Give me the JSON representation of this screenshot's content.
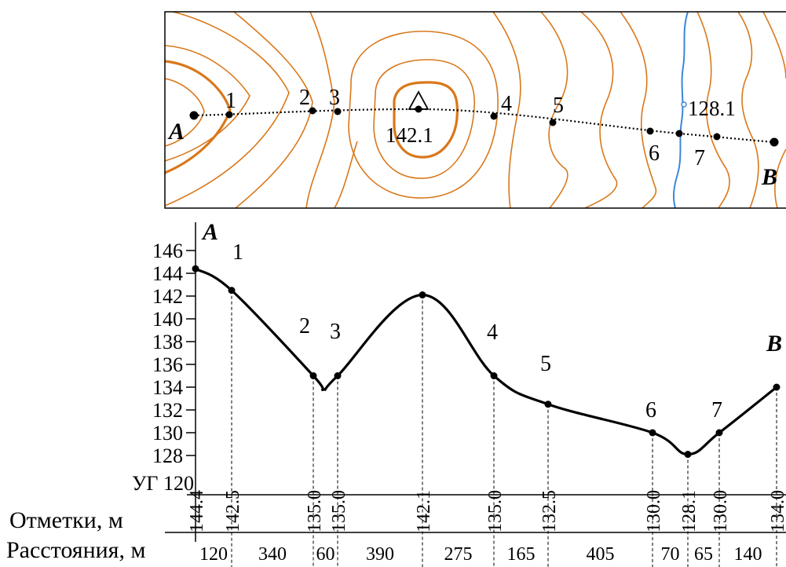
{
  "map": {
    "start_label": "A",
    "end_label": "B",
    "summit_label": "142.1",
    "river_label": "128.1",
    "point_labels": [
      "1",
      "2",
      "3",
      "4",
      "5",
      "6",
      "7"
    ],
    "contour_color": "#d9781a",
    "river_color": "#3b86d8"
  },
  "profile": {
    "baseline_label": "УГ 120",
    "row_labels": {
      "elevations": "Отметки, м",
      "distances": "Расстояния, м"
    },
    "y_ticks": [
      "146",
      "144",
      "142",
      "140",
      "138",
      "136",
      "134",
      "132",
      "130",
      "128"
    ],
    "points": [
      {
        "label": "A",
        "elevation": 144.4,
        "elevation_text": "144.4"
      },
      {
        "label": "1",
        "elevation": 142.5,
        "elevation_text": "142.5"
      },
      {
        "label": "2",
        "elevation": 135.0,
        "elevation_text": "135.0"
      },
      {
        "label": "3",
        "elevation": 135.0,
        "elevation_text": "135.0"
      },
      {
        "label": "",
        "elevation": 142.1,
        "elevation_text": "142.1"
      },
      {
        "label": "4",
        "elevation": 135.0,
        "elevation_text": "135.0"
      },
      {
        "label": "5",
        "elevation": 132.5,
        "elevation_text": "132.5"
      },
      {
        "label": "6",
        "elevation": 130.0,
        "elevation_text": "130.0"
      },
      {
        "label": "",
        "elevation": 128.1,
        "elevation_text": "128.1"
      },
      {
        "label": "7",
        "elevation": 130.0,
        "elevation_text": "130.0"
      },
      {
        "label": "B",
        "elevation": 134.0,
        "elevation_text": "134.0"
      }
    ],
    "distances": [
      "120",
      "340",
      "60",
      "390",
      "275",
      "165",
      "405",
      "70",
      "65",
      "140"
    ]
  }
}
